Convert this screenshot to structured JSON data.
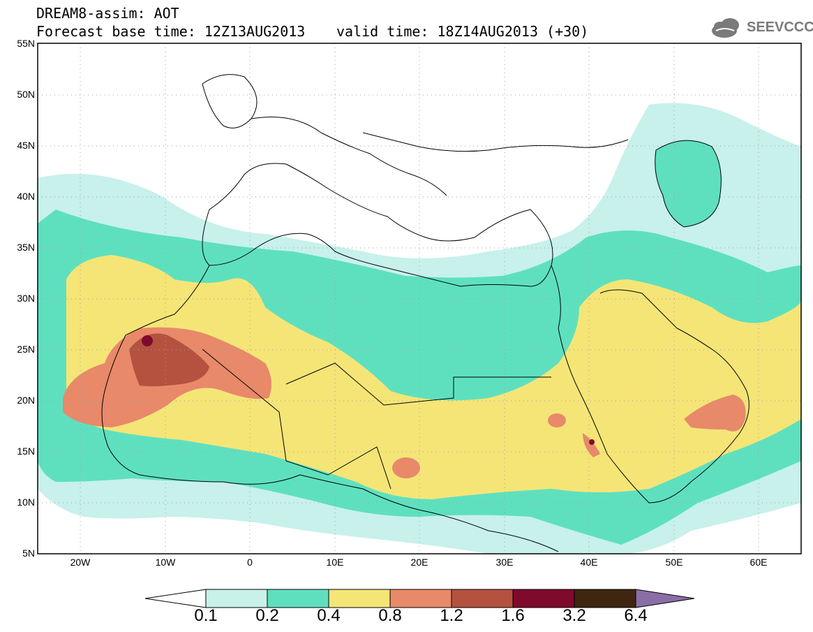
{
  "header": {
    "line1": "DREAM8-assim: AOT",
    "line2": "Forecast base time: 12Z13AUG2013",
    "valid": "valid time: 18Z14AUG2013 (+30)"
  },
  "logo": {
    "text": "SEEVCCC",
    "icon": "cloud-icon",
    "color": "#7a7a7a"
  },
  "map": {
    "lat_labels": [
      "55N",
      "50N",
      "45N",
      "40N",
      "35N",
      "30N",
      "25N",
      "20N",
      "15N",
      "10N",
      "5N"
    ],
    "lon_labels": [
      "20W",
      "10W",
      "0",
      "10E",
      "20E",
      "30E",
      "40E",
      "50E",
      "60E"
    ],
    "lat_range": [
      5,
      55
    ],
    "lon_range": [
      -25,
      65
    ],
    "grid": "dotted",
    "variable": "Aerosol optical thickness"
  },
  "colorbar": {
    "thresholds": [
      "0.1",
      "0.2",
      "0.4",
      "0.8",
      "1.2",
      "1.6",
      "3.2",
      "6.4"
    ],
    "colors": [
      "#c7f1ea",
      "#5ee0bf",
      "#f5e577",
      "#e8896a",
      "#b4523f",
      "#7f0a2c",
      "#3f2611",
      "#8a6fa7"
    ]
  }
}
